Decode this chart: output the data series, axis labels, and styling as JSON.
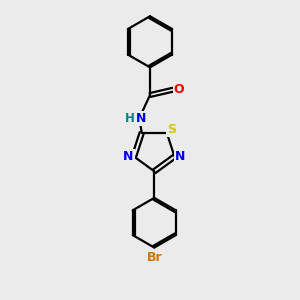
{
  "bg_color": "#ebebeb",
  "bond_color": "#000000",
  "atom_colors": {
    "N": "#0000ee",
    "S": "#cccc00",
    "O": "#ee0000",
    "Br": "#cc7700",
    "H": "#008080",
    "C": "#000000"
  },
  "bond_width": 1.6,
  "dbo": 0.055,
  "font_size_atom": 9,
  "font_size_small": 8.5
}
